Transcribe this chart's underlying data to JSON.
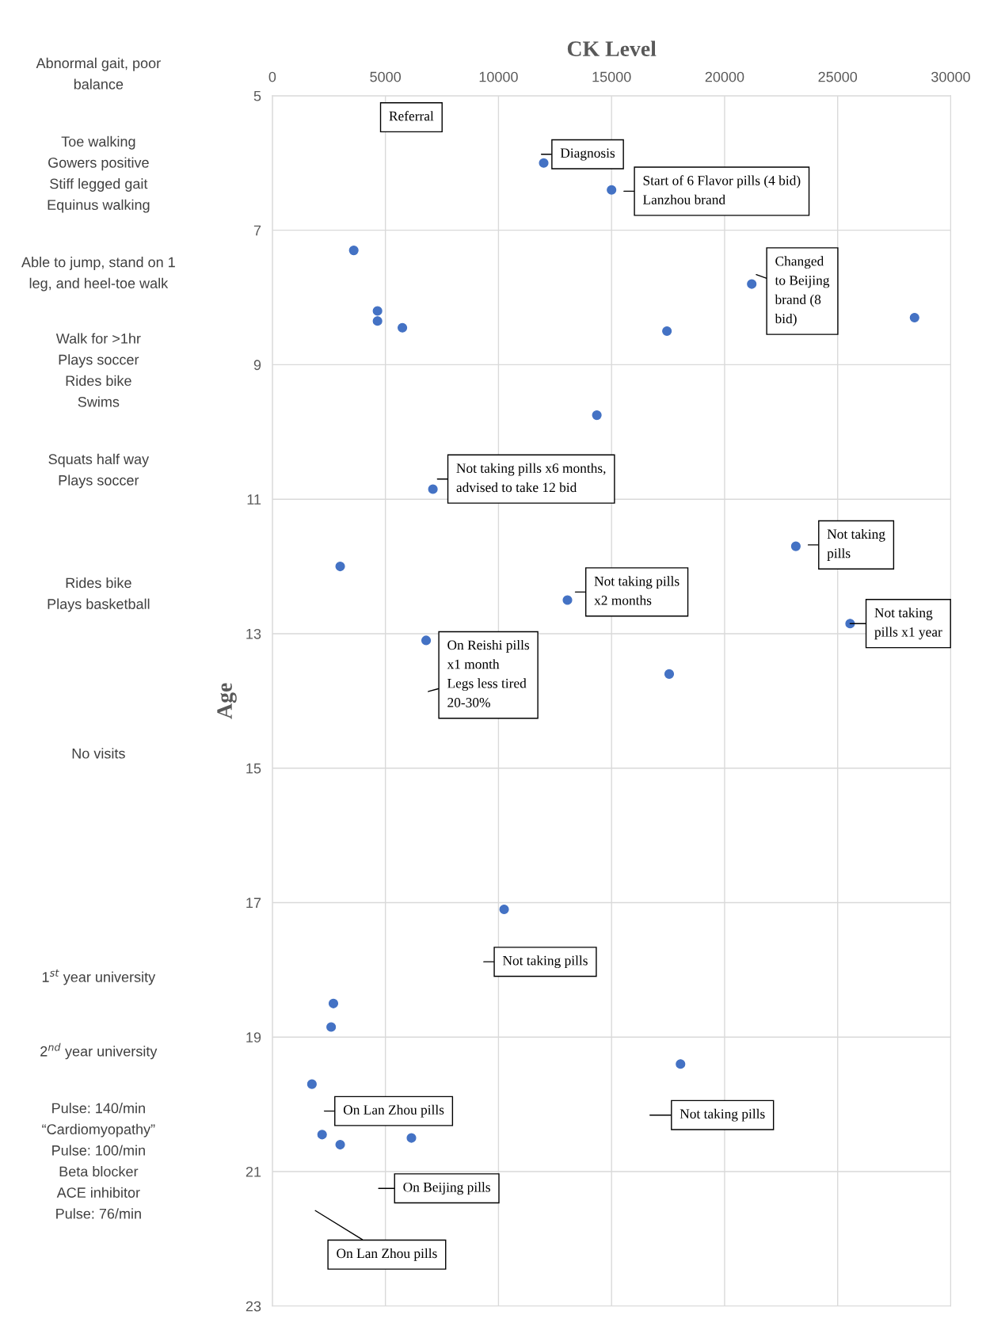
{
  "chart_data": {
    "type": "scatter",
    "xlabel": "CK Level",
    "ylabel": "Age",
    "color": "#4472c4",
    "marker": "circle",
    "grid": true,
    "x": [
      12000,
      15000,
      3600,
      21200,
      4650,
      4650,
      5750,
      17450,
      28400,
      14350,
      7100,
      23150,
      3000,
      13050,
      25550,
      6800,
      17550,
      10250,
      2700,
      2600,
      18050,
      1750,
      2200,
      3000,
      6150
    ],
    "values": [
      6.0,
      6.4,
      7.3,
      7.8,
      8.2,
      8.35,
      8.45,
      8.5,
      8.3,
      9.75,
      10.85,
      11.7,
      12.0,
      12.5,
      12.85,
      13.1,
      13.6,
      17.1,
      18.5,
      18.85,
      19.4,
      19.7,
      20.45,
      20.6,
      20.5
    ],
    "xlim": [
      0,
      30000
    ],
    "ylim": [
      23,
      5
    ],
    "xticks": [
      0,
      5000,
      10000,
      15000,
      20000,
      25000,
      30000
    ],
    "yticks": [
      5,
      7,
      9,
      11,
      13,
      15,
      17,
      19,
      21,
      23
    ],
    "annotations": [
      "Referral",
      "Diagnosis",
      "Start of 6 Flavor pills (4 bid)\nLanzhou brand",
      "Changed\nto Beijing\nbrand (8\nbid)",
      "Not taking pills x6 months,\nadvised to take 12 bid",
      "Not taking\npills",
      "Not taking pills\nx2 months",
      {
        "text": "Not taking\npills x1 year",
        "x": 25550,
        "y": 12.85
      },
      "On Reishi pills\nx1 month\nLegs less tired\n20-30%",
      "Not taking pills",
      "On Lan Zhou pills",
      "Not taking pills",
      "On Beijing pills",
      "On Lan Zhou pills",
      "Abnormal gait, poor\nbalance",
      "Toe walking\nGowers positive\nStiff legged gait\nEquinus walking",
      "Able to jump, stand on 1\nleg, and heel-toe walk",
      "Walk for >1hr\nPlays soccer\nRides bike\nSwims",
      "Squats half way\nPlays soccer",
      "Rides bike\nPlays basketball",
      "No visits",
      "1$^{st}$ year university",
      "2$^{nd}$ year university",
      "Pulse: 140/min\n“Cardiomyopathy”\nPulse: 100/min\nBeta blocker\nACE inhibitor\nPulse: 76/min"
    ]
  }
}
